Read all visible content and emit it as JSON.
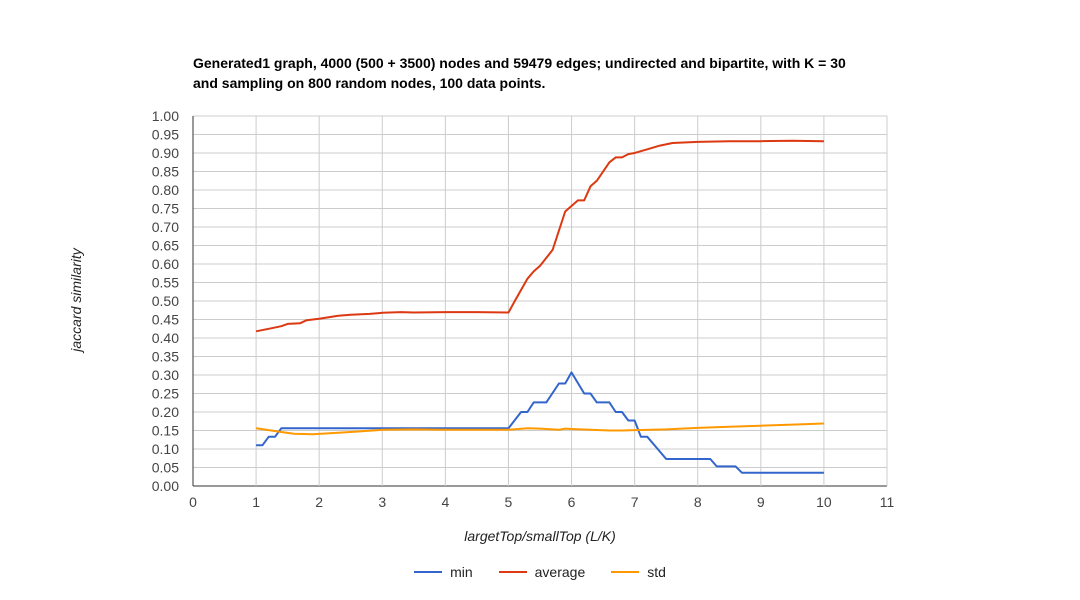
{
  "chart_data": {
    "type": "line",
    "title_line1": "Generated1 graph, 4000 (500 + 3500) nodes and 59479 edges; undirected and bipartite, with K = 30",
    "title_line2": "and sampling on 800 random nodes, 100 data points.",
    "xlabel": "largetTop/smallTop (L/K)",
    "ylabel": "jaccard similarity",
    "xlim": [
      0,
      11
    ],
    "ylim": [
      0,
      1
    ],
    "x_ticks": [
      "0",
      "1",
      "2",
      "3",
      "4",
      "5",
      "6",
      "7",
      "8",
      "9",
      "10",
      "11"
    ],
    "y_ticks": [
      "0.00",
      "0.05",
      "0.10",
      "0.15",
      "0.20",
      "0.25",
      "0.30",
      "0.35",
      "0.40",
      "0.45",
      "0.50",
      "0.55",
      "0.60",
      "0.65",
      "0.70",
      "0.75",
      "0.80",
      "0.85",
      "0.90",
      "0.95",
      "1.00"
    ],
    "grid": true,
    "legend_position": "bottom",
    "series": [
      {
        "name": "min",
        "color": "#3366cc",
        "points": [
          [
            1.0,
            0.11
          ],
          [
            1.1,
            0.11
          ],
          [
            1.2,
            0.133
          ],
          [
            1.3,
            0.133
          ],
          [
            1.4,
            0.156
          ],
          [
            2,
            0.156
          ],
          [
            3,
            0.156
          ],
          [
            4,
            0.156
          ],
          [
            5.0,
            0.156
          ],
          [
            5.2,
            0.2
          ],
          [
            5.3,
            0.2
          ],
          [
            5.4,
            0.226
          ],
          [
            5.6,
            0.226
          ],
          [
            5.8,
            0.277
          ],
          [
            5.9,
            0.277
          ],
          [
            6.0,
            0.307
          ],
          [
            6.2,
            0.25
          ],
          [
            6.3,
            0.25
          ],
          [
            6.4,
            0.226
          ],
          [
            6.6,
            0.226
          ],
          [
            6.7,
            0.2
          ],
          [
            6.8,
            0.2
          ],
          [
            6.9,
            0.177
          ],
          [
            7.0,
            0.177
          ],
          [
            7.1,
            0.133
          ],
          [
            7.2,
            0.133
          ],
          [
            7.5,
            0.073
          ],
          [
            8.2,
            0.073
          ],
          [
            8.3,
            0.053
          ],
          [
            8.6,
            0.053
          ],
          [
            8.7,
            0.036
          ],
          [
            10.0,
            0.036
          ]
        ]
      },
      {
        "name": "average",
        "color": "#dc3912",
        "points": [
          [
            1.0,
            0.418
          ],
          [
            1.2,
            0.425
          ],
          [
            1.4,
            0.432
          ],
          [
            1.5,
            0.438
          ],
          [
            1.7,
            0.44
          ],
          [
            1.8,
            0.448
          ],
          [
            2.0,
            0.452
          ],
          [
            2.3,
            0.46
          ],
          [
            2.5,
            0.463
          ],
          [
            2.8,
            0.465
          ],
          [
            3.0,
            0.468
          ],
          [
            3.3,
            0.47
          ],
          [
            3.5,
            0.469
          ],
          [
            4.0,
            0.47
          ],
          [
            4.5,
            0.47
          ],
          [
            5.0,
            0.469
          ],
          [
            5.1,
            0.5
          ],
          [
            5.3,
            0.56
          ],
          [
            5.4,
            0.58
          ],
          [
            5.5,
            0.595
          ],
          [
            5.7,
            0.638
          ],
          [
            5.9,
            0.742
          ],
          [
            6.1,
            0.772
          ],
          [
            6.2,
            0.772
          ],
          [
            6.3,
            0.81
          ],
          [
            6.4,
            0.825
          ],
          [
            6.6,
            0.875
          ],
          [
            6.7,
            0.888
          ],
          [
            6.8,
            0.888
          ],
          [
            6.9,
            0.897
          ],
          [
            7.0,
            0.9
          ],
          [
            7.2,
            0.91
          ],
          [
            7.4,
            0.92
          ],
          [
            7.6,
            0.927
          ],
          [
            8.0,
            0.93
          ],
          [
            8.5,
            0.932
          ],
          [
            9.0,
            0.932
          ],
          [
            9.5,
            0.933
          ],
          [
            10.0,
            0.932
          ]
        ]
      },
      {
        "name": "std",
        "color": "#ff9900",
        "points": [
          [
            1.0,
            0.156
          ],
          [
            1.2,
            0.151
          ],
          [
            1.4,
            0.146
          ],
          [
            1.6,
            0.141
          ],
          [
            1.9,
            0.14
          ],
          [
            2.2,
            0.143
          ],
          [
            2.5,
            0.146
          ],
          [
            3.0,
            0.152
          ],
          [
            3.5,
            0.153
          ],
          [
            4.0,
            0.152
          ],
          [
            4.5,
            0.152
          ],
          [
            5.0,
            0.152
          ],
          [
            5.3,
            0.156
          ],
          [
            5.5,
            0.155
          ],
          [
            5.8,
            0.152
          ],
          [
            5.9,
            0.155
          ],
          [
            6.0,
            0.154
          ],
          [
            6.3,
            0.152
          ],
          [
            6.6,
            0.15
          ],
          [
            6.8,
            0.15
          ],
          [
            7.0,
            0.151
          ],
          [
            7.5,
            0.153
          ],
          [
            8.0,
            0.157
          ],
          [
            8.5,
            0.16
          ],
          [
            9.0,
            0.163
          ],
          [
            9.5,
            0.166
          ],
          [
            10.0,
            0.169
          ]
        ]
      }
    ]
  }
}
